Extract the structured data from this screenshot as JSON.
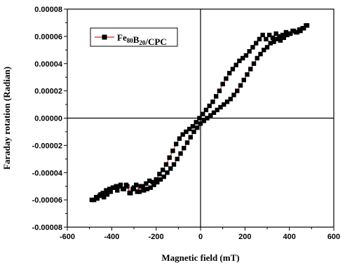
{
  "chart_data": {
    "type": "scatter",
    "title": "",
    "xlabel": "Magnetic field (mT)",
    "ylabel": "Faraday rotation (Radian)",
    "xlim": [
      -600,
      600
    ],
    "ylim": [
      -8e-05,
      8e-05
    ],
    "xticks": [
      -600,
      -400,
      -200,
      0,
      200,
      400,
      600
    ],
    "xtick_labels": [
      "-600",
      "-400",
      "-200",
      "0",
      "200",
      "400",
      "600"
    ],
    "yticks": [
      -8e-05,
      -6e-05,
      -4e-05,
      -2e-05,
      0.0,
      2e-05,
      4e-05,
      6e-05,
      8e-05
    ],
    "ytick_labels": [
      "-0.00008",
      "-0.00006",
      "-0.00004",
      "-0.00002",
      "0.00000",
      "0.00002",
      "0.00004",
      "0.00006",
      "0.00008"
    ],
    "grid": false,
    "zero_lines": true,
    "legend_position": "top-left",
    "series": [
      {
        "name": "Fe80B20/CPC",
        "legend_parts": [
          {
            "text": "Fe",
            "sub": false
          },
          {
            "text": "80",
            "sub": true
          },
          {
            "text": "B",
            "sub": false
          },
          {
            "text": "20",
            "sub": true
          },
          {
            "text": "/CPC",
            "sub": false
          }
        ],
        "marker": "square",
        "marker_color": "#000000",
        "line_color": "#e02020",
        "branches": [
          {
            "x": [
              -490,
              -470,
              -455,
              -440,
              -425,
              -410,
              -395,
              -380,
              -365,
              -350,
              -335,
              -320,
              -305,
              -290,
              -275,
              -260,
              -245,
              -230,
              -215,
              -200,
              -185,
              -170,
              -155,
              -140,
              -125,
              -110,
              -95,
              -80,
              -65,
              -50,
              -35,
              -20,
              -5,
              10,
              25,
              40,
              55,
              70,
              85,
              100,
              115,
              130,
              145,
              160,
              175,
              190,
              205,
              220,
              235,
              250,
              265,
              280,
              295,
              310,
              325,
              340,
              355,
              370,
              385,
              400,
              415,
              430,
              445,
              460,
              475
            ],
            "y": [
              -6e-05,
              -5.8e-05,
              -5.7e-05,
              -5.5e-05,
              -5.3e-05,
              -5.2e-05,
              -5.1e-05,
              -5e-05,
              -5e-05,
              -5.2e-05,
              -4.9e-05,
              -5.5e-05,
              -5.2e-05,
              -4.9e-05,
              -5.4e-05,
              -5e-05,
              -4.8e-05,
              -4.6e-05,
              -4.7e-05,
              -4.5e-05,
              -4.1e-05,
              -3.8e-05,
              -3.4e-05,
              -2.9e-05,
              -2.4e-05,
              -1.9e-05,
              -1.5e-05,
              -1.2e-05,
              -1e-05,
              -8e-06,
              -6e-06,
              -3e-06,
              0.0,
              3e-06,
              6e-06,
              9e-06,
              1.2e-05,
              1.6e-05,
              2e-05,
              2.5e-05,
              2.9e-05,
              3.3e-05,
              3.6e-05,
              3.9e-05,
              4.2e-05,
              4.4e-05,
              4.6e-05,
              4.9e-05,
              5.2e-05,
              5.5e-05,
              5.8e-05,
              6.1e-05,
              5.8e-05,
              6.1e-05,
              5.9e-05,
              6.2e-05,
              6e-05,
              6.1e-05,
              6.3e-05,
              6.2e-05,
              6.4e-05,
              6.3e-05,
              6.5e-05,
              6.6e-05,
              6.8e-05
            ]
          },
          {
            "x": [
              480,
              465,
              450,
              435,
              420,
              405,
              390,
              375,
              360,
              345,
              330,
              315,
              300,
              285,
              270,
              255,
              240,
              225,
              210,
              195,
              180,
              165,
              150,
              135,
              120,
              105,
              90,
              75,
              60,
              45,
              30,
              15,
              0,
              -15,
              -30,
              -45,
              -60,
              -75,
              -90,
              -105,
              -120,
              -135,
              -150,
              -165,
              -180,
              -195,
              -210,
              -225,
              -240,
              -255,
              -270,
              -285,
              -300,
              -315,
              -330,
              -345,
              -360,
              -375,
              -390,
              -405,
              -420,
              -435,
              -450,
              -465,
              -480
            ],
            "y": [
              6.8e-05,
              6.6e-05,
              6.4e-05,
              6.3e-05,
              6.4e-05,
              6.2e-05,
              6.1e-05,
              5.9e-05,
              5.7e-05,
              5.8e-05,
              5.6e-05,
              5.5e-05,
              5.2e-05,
              5e-05,
              4.7e-05,
              4.4e-05,
              4e-05,
              3.6e-05,
              3.2e-05,
              2.8e-05,
              2.4e-05,
              2e-05,
              1.7e-05,
              1.4e-05,
              1.2e-05,
              1e-05,
              8e-06,
              6e-06,
              4e-06,
              2e-06,
              0.0,
              -2e-06,
              -4e-06,
              -7e-06,
              -1e-05,
              -1.4e-05,
              -1.8e-05,
              -2.2e-05,
              -2.6e-05,
              -3e-05,
              -3.4e-05,
              -3.7e-05,
              -4e-05,
              -4.3e-05,
              -4.5e-05,
              -4.7e-05,
              -4.9e-05,
              -5.1e-05,
              -5.2e-05,
              -5.3e-05,
              -5e-05,
              -5.4e-05,
              -5.1e-05,
              -5.5e-05,
              -5e-05,
              -5.2e-05,
              -4.9e-05,
              -5.3e-05,
              -5.1e-05,
              -5.4e-05,
              -5.6e-05,
              -5.8e-05,
              -5.6e-05,
              -5.9e-05,
              -6e-05
            ]
          }
        ]
      }
    ]
  }
}
